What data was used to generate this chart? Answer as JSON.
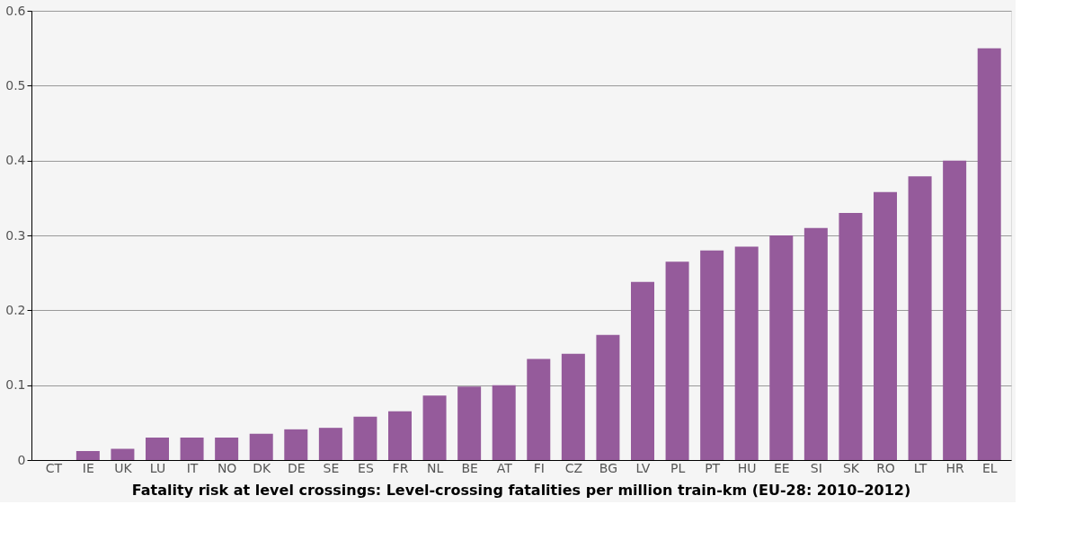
{
  "chart_data": {
    "type": "bar",
    "title": "Fatality risk at level crossings: Level-crossing fatalities per million train-km (EU-28: 2010–2012)",
    "categories": [
      "CT",
      "IE",
      "UK",
      "LU",
      "IT",
      "NO",
      "DK",
      "DE",
      "SE",
      "ES",
      "FR",
      "NL",
      "BE",
      "AT",
      "FI",
      "CZ",
      "BG",
      "LV",
      "PL",
      "PT",
      "HU",
      "EE",
      "SI",
      "SK",
      "RO",
      "LT",
      "HR",
      "EL"
    ],
    "values": [
      0,
      0.012,
      0.015,
      0.03,
      0.03,
      0.03,
      0.035,
      0.041,
      0.043,
      0.058,
      0.065,
      0.086,
      0.098,
      0.1,
      0.135,
      0.142,
      0.167,
      0.238,
      0.265,
      0.28,
      0.285,
      0.3,
      0.31,
      0.33,
      0.358,
      0.379,
      0.4,
      0.55
    ],
    "color": "#955b9b",
    "ylim": [
      0,
      0.6
    ],
    "yticks": [
      0,
      0.1,
      0.2,
      0.3,
      0.4,
      0.5,
      0.6
    ],
    "grid": "y"
  }
}
